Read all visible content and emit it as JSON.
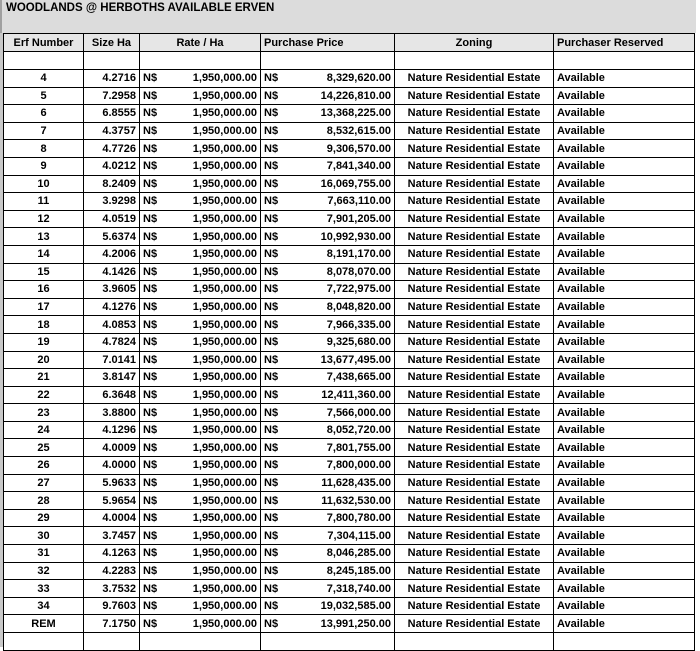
{
  "title": "WOODLANDS @ HERBOTHS AVAILABLE ERVEN",
  "columns": [
    "Erf Number",
    "Size Ha",
    "Rate / Ha",
    "Purchase Price",
    "Zoning",
    "Purchaser Reserved"
  ],
  "currency": "N$",
  "rows": [
    [
      "4",
      "4.2716",
      "1,950,000.00",
      "8,329,620.00",
      "Nature Residential Estate",
      "Available"
    ],
    [
      "5",
      "7.2958",
      "1,950,000.00",
      "14,226,810.00",
      "Nature Residential Estate",
      "Available"
    ],
    [
      "6",
      "6.8555",
      "1,950,000.00",
      "13,368,225.00",
      "Nature Residential Estate",
      "Available"
    ],
    [
      "7",
      "4.3757",
      "1,950,000.00",
      "8,532,615.00",
      "Nature Residential Estate",
      "Available"
    ],
    [
      "8",
      "4.7726",
      "1,950,000.00",
      "9,306,570.00",
      "Nature Residential Estate",
      "Available"
    ],
    [
      "9",
      "4.0212",
      "1,950,000.00",
      "7,841,340.00",
      "Nature Residential Estate",
      "Available"
    ],
    [
      "10",
      "8.2409",
      "1,950,000.00",
      "16,069,755.00",
      "Nature Residential Estate",
      "Available"
    ],
    [
      "11",
      "3.9298",
      "1,950,000.00",
      "7,663,110.00",
      "Nature Residential Estate",
      "Available"
    ],
    [
      "12",
      "4.0519",
      "1,950,000.00",
      "7,901,205.00",
      "Nature Residential Estate",
      "Available"
    ],
    [
      "13",
      "5.6374",
      "1,950,000.00",
      "10,992,930.00",
      "Nature Residential Estate",
      "Available"
    ],
    [
      "14",
      "4.2006",
      "1,950,000.00",
      "8,191,170.00",
      "Nature Residential Estate",
      "Available"
    ],
    [
      "15",
      "4.1426",
      "1,950,000.00",
      "8,078,070.00",
      "Nature Residential Estate",
      "Available"
    ],
    [
      "16",
      "3.9605",
      "1,950,000.00",
      "7,722,975.00",
      "Nature Residential Estate",
      "Available"
    ],
    [
      "17",
      "4.1276",
      "1,950,000.00",
      "8,048,820.00",
      "Nature Residential Estate",
      "Available"
    ],
    [
      "18",
      "4.0853",
      "1,950,000.00",
      "7,966,335.00",
      "Nature Residential Estate",
      "Available"
    ],
    [
      "19",
      "4.7824",
      "1,950,000.00",
      "9,325,680.00",
      "Nature Residential Estate",
      "Available"
    ],
    [
      "20",
      "7.0141",
      "1,950,000.00",
      "13,677,495.00",
      "Nature Residential Estate",
      "Available"
    ],
    [
      "21",
      "3.8147",
      "1,950,000.00",
      "7,438,665.00",
      "Nature Residential Estate",
      "Available"
    ],
    [
      "22",
      "6.3648",
      "1,950,000.00",
      "12,411,360.00",
      "Nature Residential Estate",
      "Available"
    ],
    [
      "23",
      "3.8800",
      "1,950,000.00",
      "7,566,000.00",
      "Nature Residential Estate",
      "Available"
    ],
    [
      "24",
      "4.1296",
      "1,950,000.00",
      "8,052,720.00",
      "Nature Residential Estate",
      "Available"
    ],
    [
      "25",
      "4.0009",
      "1,950,000.00",
      "7,801,755.00",
      "Nature Residential Estate",
      "Available"
    ],
    [
      "26",
      "4.0000",
      "1,950,000.00",
      "7,800,000.00",
      "Nature Residential Estate",
      "Available"
    ],
    [
      "27",
      "5.9633",
      "1,950,000.00",
      "11,628,435.00",
      "Nature Residential Estate",
      "Available"
    ],
    [
      "28",
      "5.9654",
      "1,950,000.00",
      "11,632,530.00",
      "Nature Residential Estate",
      "Available"
    ],
    [
      "29",
      "4.0004",
      "1,950,000.00",
      "7,800,780.00",
      "Nature Residential Estate",
      "Available"
    ],
    [
      "30",
      "3.7457",
      "1,950,000.00",
      "7,304,115.00",
      "Nature Residential Estate",
      "Available"
    ],
    [
      "31",
      "4.1263",
      "1,950,000.00",
      "8,046,285.00",
      "Nature Residential Estate",
      "Available"
    ],
    [
      "32",
      "4.2283",
      "1,950,000.00",
      "8,245,185.00",
      "Nature Residential Estate",
      "Available"
    ],
    [
      "33",
      "3.7532",
      "1,950,000.00",
      "7,318,740.00",
      "Nature Residential Estate",
      "Available"
    ],
    [
      "34",
      "9.7603",
      "1,950,000.00",
      "19,032,585.00",
      "Nature Residential Estate",
      "Available"
    ],
    [
      "REM",
      "7.1750",
      "1,950,000.00",
      "13,991,250.00",
      "Nature Residential Estate",
      "Available"
    ]
  ]
}
